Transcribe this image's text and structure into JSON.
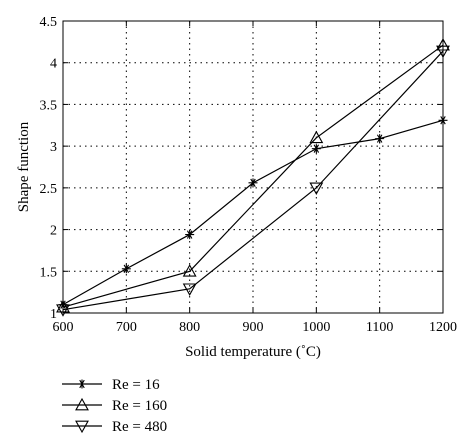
{
  "chart_data": {
    "type": "line",
    "title": "",
    "xlabel": "Solid temperature (˚C)",
    "ylabel": "Shape function",
    "xlim": [
      600,
      1200
    ],
    "ylim": [
      1,
      4.5
    ],
    "xticks": [
      600,
      700,
      800,
      900,
      1000,
      1100,
      1200
    ],
    "yticks": [
      1,
      1.5,
      2,
      2.5,
      3,
      3.5,
      4,
      4.5
    ],
    "xtick_labels": [
      "600",
      "700",
      "800",
      "900",
      "1000",
      "1100",
      "1200"
    ],
    "ytick_labels": [
      "1",
      "1.5",
      "2",
      "2.5",
      "3",
      "3.5",
      "4",
      "4.5"
    ],
    "grid": true,
    "legend_position": "below",
    "series": [
      {
        "name": "Re = 16",
        "marker": "asterisk",
        "x": [
          600,
          700,
          800,
          900,
          1000,
          1100,
          1200
        ],
        "y": [
          1.1,
          1.53,
          1.94,
          2.56,
          2.97,
          3.09,
          3.31
        ]
      },
      {
        "name": "Re = 160",
        "marker": "triangle-up",
        "x": [
          600,
          800,
          1000,
          1200
        ],
        "y": [
          1.07,
          1.5,
          3.1,
          4.21
        ]
      },
      {
        "name": "Re = 480",
        "marker": "triangle-down",
        "x": [
          600,
          800,
          1000,
          1200
        ],
        "y": [
          1.04,
          1.29,
          2.5,
          4.14
        ]
      }
    ]
  }
}
